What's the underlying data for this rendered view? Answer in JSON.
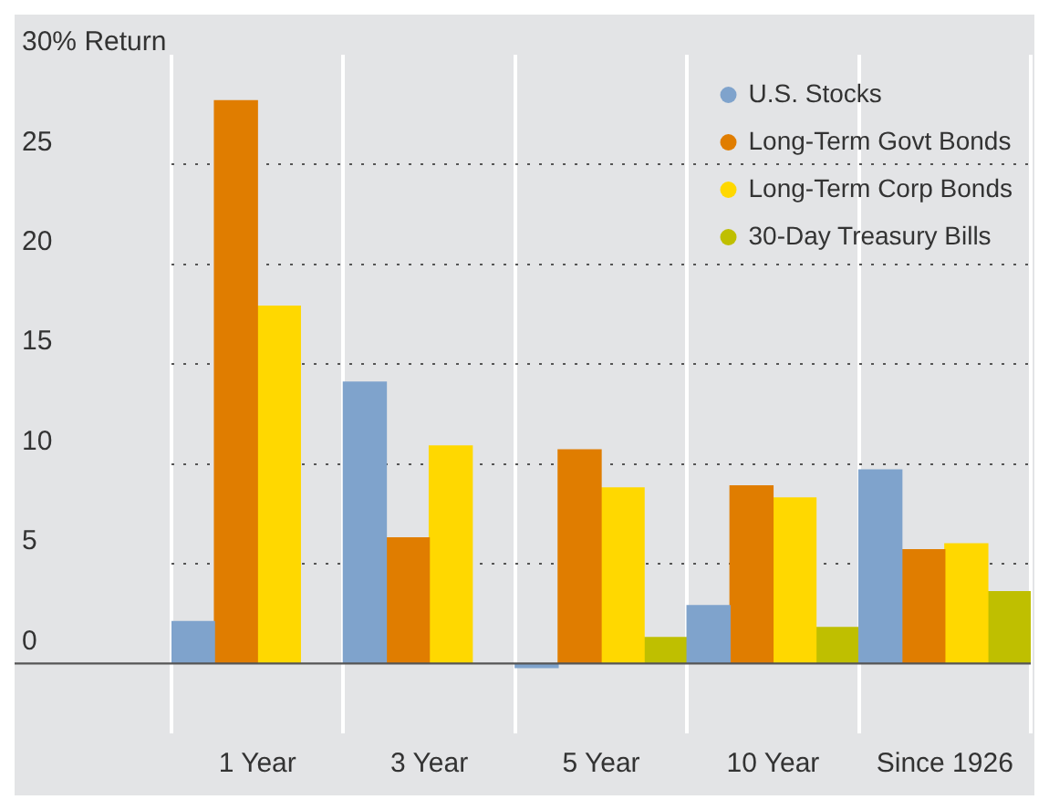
{
  "chart_data": {
    "type": "bar",
    "categories": [
      "1 Year",
      "3 Year",
      "5 Year",
      "10 Year",
      "Since 1926"
    ],
    "series": [
      {
        "name": "U.S. Stocks",
        "color": "#7fa3cc",
        "values": [
          2.1,
          14.1,
          -0.2,
          2.9,
          9.7
        ]
      },
      {
        "name": "Long-Term Govt Bonds",
        "color": "#e07d00",
        "values": [
          28.2,
          6.3,
          10.7,
          8.9,
          5.7
        ]
      },
      {
        "name": "Long-Term Corp Bonds",
        "color": "#ffd800",
        "values": [
          17.9,
          10.9,
          8.8,
          8.3,
          6.0
        ]
      },
      {
        "name": "30-Day Treasury Bills",
        "color": "#bfbf00",
        "values": [
          null,
          null,
          1.3,
          1.8,
          3.6
        ]
      }
    ],
    "ylim": [
      -3.5,
      30.5
    ],
    "yticks": [
      0,
      5,
      10,
      15,
      20,
      25,
      {
        "value": 30,
        "label": "30% Return"
      }
    ],
    "grid": true,
    "legend": "top right"
  }
}
